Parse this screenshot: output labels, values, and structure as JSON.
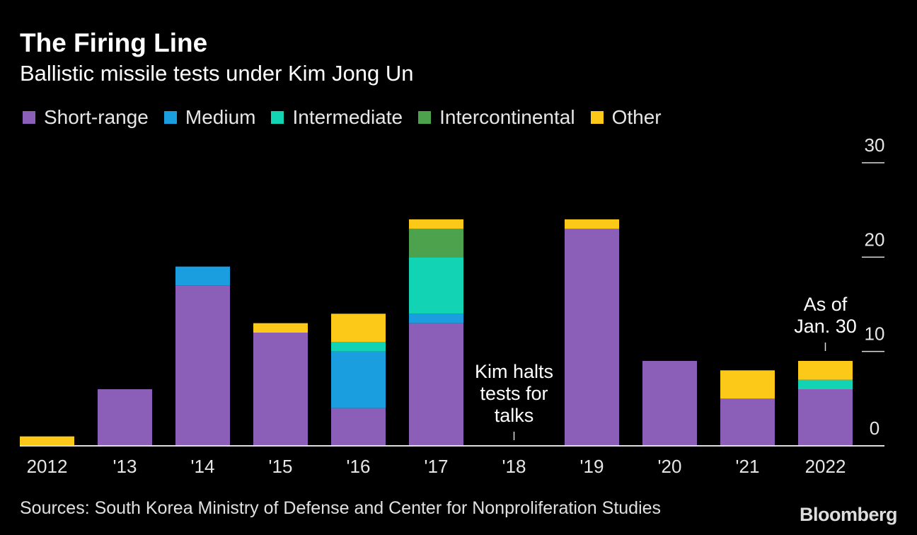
{
  "title": "The Firing Line",
  "subtitle": "Ballistic missile tests under Kim Jong Un",
  "source": "Sources: South Korea Ministry of Defense and Center for Nonproliferation Studies",
  "brand": "Bloomberg",
  "colors": {
    "short_range": "#8b5fb8",
    "medium": "#1a9ee0",
    "intermediate": "#12d4b4",
    "intercontinental": "#4da34d",
    "other": "#fdc918",
    "background": "#000000"
  },
  "chart_data": {
    "type": "bar",
    "stacked": true,
    "title": "The Firing Line",
    "subtitle": "Ballistic missile tests under Kim Jong Un",
    "xlabel": "",
    "ylabel": "",
    "ylim": [
      0,
      30
    ],
    "yticks": [
      "0",
      "10",
      "20",
      "30"
    ],
    "categories": [
      "2012",
      "'13",
      "'14",
      "'15",
      "'16",
      "'17",
      "'18",
      "'19",
      "'20",
      "'21",
      "2022"
    ],
    "series": [
      {
        "name": "Short-range",
        "color": "#8b5fb8",
        "values": [
          0,
          6,
          17,
          12,
          4,
          13,
          0,
          23,
          9,
          5,
          6
        ]
      },
      {
        "name": "Medium",
        "color": "#1a9ee0",
        "values": [
          0,
          0,
          2,
          0,
          6,
          1,
          0,
          0,
          0,
          0,
          0
        ]
      },
      {
        "name": "Intermediate",
        "color": "#12d4b4",
        "values": [
          0,
          0,
          0,
          0,
          1,
          6,
          0,
          0,
          0,
          0,
          1
        ]
      },
      {
        "name": "Intercontinental",
        "color": "#4da34d",
        "values": [
          0,
          0,
          0,
          0,
          0,
          3,
          0,
          0,
          0,
          0,
          0
        ]
      },
      {
        "name": "Other",
        "color": "#fdc918",
        "values": [
          1,
          0,
          0,
          1,
          3,
          1,
          0,
          1,
          0,
          3,
          2
        ]
      }
    ],
    "annotations": [
      {
        "category": "'18",
        "lines": [
          "Kim halts",
          "tests for",
          "talks"
        ]
      },
      {
        "category": "2022",
        "lines": [
          "As of",
          "Jan. 30"
        ]
      }
    ],
    "legend": "top-left",
    "grid": false
  }
}
